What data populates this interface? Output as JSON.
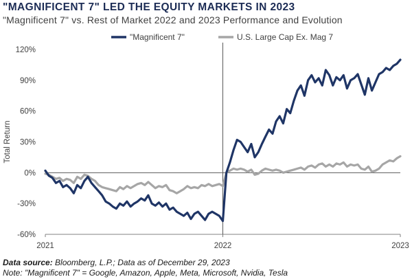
{
  "header": {
    "title": "\"MAGNIFICENT 7\" LED THE EQUITY MARKETS IN 2023",
    "subtitle": "\"Magnificent 7\" vs. Rest of Market 2022 and 2023 Performance and Evolution"
  },
  "footer": {
    "source_label": "Data source:",
    "source_text": " Bloomberg, L.P.; Data as of December 29, 2023",
    "note_text": "Note: \"Magnificent 7\" = Google, Amazon, Apple, Meta, Microsoft, Nvidia, Tesla"
  },
  "colors": {
    "mag7": "#1f3566",
    "rest": "#a6a6a6",
    "axis": "#808080",
    "divider": "#595959"
  },
  "chart_data": {
    "type": "line",
    "ylabel": "Total Return",
    "xlabel": "",
    "ylim": [
      -60,
      120
    ],
    "yticks": [
      -60,
      -30,
      0,
      30,
      60,
      90,
      120
    ],
    "ytick_labels": [
      "-60%",
      "-30%",
      "0%",
      "30%",
      "60%",
      "90%",
      "120%"
    ],
    "xlim": [
      0,
      2
    ],
    "xticks": [
      0,
      1,
      2
    ],
    "xtick_labels": [
      "2021",
      "2022",
      "2023"
    ],
    "divider_x": 1,
    "grid": false,
    "legend_position": "top-center",
    "series": [
      {
        "name": "\"Magnificent 7\"",
        "color": "#1f3566",
        "x": [
          0,
          0.02,
          0.04,
          0.06,
          0.08,
          0.1,
          0.12,
          0.14,
          0.16,
          0.18,
          0.2,
          0.22,
          0.24,
          0.26,
          0.28,
          0.3,
          0.32,
          0.34,
          0.36,
          0.38,
          0.4,
          0.42,
          0.44,
          0.46,
          0.48,
          0.5,
          0.52,
          0.54,
          0.56,
          0.58,
          0.6,
          0.62,
          0.64,
          0.66,
          0.68,
          0.7,
          0.72,
          0.74,
          0.76,
          0.78,
          0.8,
          0.82,
          0.84,
          0.86,
          0.88,
          0.9,
          0.92,
          0.94,
          0.96,
          0.98,
          1.0,
          1.02,
          1.04,
          1.06,
          1.08,
          1.1,
          1.12,
          1.14,
          1.16,
          1.18,
          1.2,
          1.22,
          1.24,
          1.26,
          1.28,
          1.3,
          1.32,
          1.34,
          1.36,
          1.38,
          1.4,
          1.42,
          1.44,
          1.46,
          1.48,
          1.5,
          1.52,
          1.54,
          1.56,
          1.58,
          1.6,
          1.62,
          1.64,
          1.66,
          1.68,
          1.7,
          1.72,
          1.74,
          1.76,
          1.78,
          1.8,
          1.82,
          1.84,
          1.86,
          1.88,
          1.9,
          1.92,
          1.94,
          1.96,
          1.98,
          2.0
        ],
        "values": [
          2,
          -3,
          -5,
          -10,
          -8,
          -14,
          -12,
          -15,
          -20,
          -12,
          -15,
          -8,
          -4,
          -10,
          -14,
          -18,
          -22,
          -28,
          -30,
          -33,
          -35,
          -30,
          -32,
          -28,
          -33,
          -30,
          -28,
          -25,
          -27,
          -22,
          -30,
          -32,
          -29,
          -33,
          -30,
          -36,
          -34,
          -38,
          -40,
          -42,
          -39,
          -45,
          -40,
          -38,
          -42,
          -46,
          -40,
          -38,
          -40,
          -42,
          -47,
          0,
          10,
          22,
          32,
          30,
          25,
          20,
          28,
          15,
          20,
          28,
          35,
          42,
          38,
          50,
          55,
          48,
          62,
          58,
          70,
          80,
          85,
          75,
          90,
          95,
          88,
          92,
          85,
          100,
          95,
          85,
          93,
          90,
          95,
          82,
          90,
          92,
          96,
          86,
          76,
          92,
          80,
          88,
          96,
          98,
          102,
          100,
          104,
          106,
          110
        ]
      },
      {
        "name": "U.S. Large Cap Ex. Mag 7",
        "color": "#a6a6a6",
        "x": [
          0,
          0.02,
          0.04,
          0.06,
          0.08,
          0.1,
          0.12,
          0.14,
          0.16,
          0.18,
          0.2,
          0.22,
          0.24,
          0.26,
          0.28,
          0.3,
          0.32,
          0.34,
          0.36,
          0.38,
          0.4,
          0.42,
          0.44,
          0.46,
          0.48,
          0.5,
          0.52,
          0.54,
          0.56,
          0.58,
          0.6,
          0.62,
          0.64,
          0.66,
          0.68,
          0.7,
          0.72,
          0.74,
          0.76,
          0.78,
          0.8,
          0.82,
          0.84,
          0.86,
          0.88,
          0.9,
          0.92,
          0.94,
          0.96,
          0.98,
          1.0,
          1.02,
          1.04,
          1.06,
          1.08,
          1.1,
          1.12,
          1.14,
          1.16,
          1.18,
          1.2,
          1.22,
          1.24,
          1.26,
          1.28,
          1.3,
          1.32,
          1.34,
          1.36,
          1.38,
          1.4,
          1.42,
          1.44,
          1.46,
          1.48,
          1.5,
          1.52,
          1.54,
          1.56,
          1.58,
          1.6,
          1.62,
          1.64,
          1.66,
          1.68,
          1.7,
          1.72,
          1.74,
          1.76,
          1.78,
          1.8,
          1.82,
          1.84,
          1.86,
          1.88,
          1.9,
          1.92,
          1.94,
          1.96,
          1.98,
          2.0
        ],
        "values": [
          -1,
          -2,
          -4,
          -6,
          -5,
          -8,
          -6,
          -7,
          -10,
          -4,
          -6,
          -2,
          -3,
          -6,
          -8,
          -12,
          -14,
          -15,
          -16,
          -17,
          -18,
          -14,
          -16,
          -13,
          -15,
          -13,
          -11,
          -10,
          -12,
          -9,
          -12,
          -15,
          -13,
          -14,
          -12,
          -17,
          -18,
          -20,
          -18,
          -16,
          -13,
          -15,
          -14,
          -15,
          -12,
          -13,
          -11,
          -13,
          -12,
          -11,
          -13,
          0,
          2,
          4,
          3,
          4,
          3,
          1,
          3,
          -2,
          -1,
          2,
          4,
          3,
          2,
          3,
          2,
          0,
          1,
          2,
          3,
          4,
          5,
          3,
          6,
          7,
          5,
          8,
          9,
          6,
          8,
          6,
          9,
          8,
          10,
          6,
          8,
          7,
          8,
          4,
          3,
          6,
          1,
          2,
          4,
          8,
          10,
          12,
          11,
          14,
          16
        ]
      }
    ]
  }
}
